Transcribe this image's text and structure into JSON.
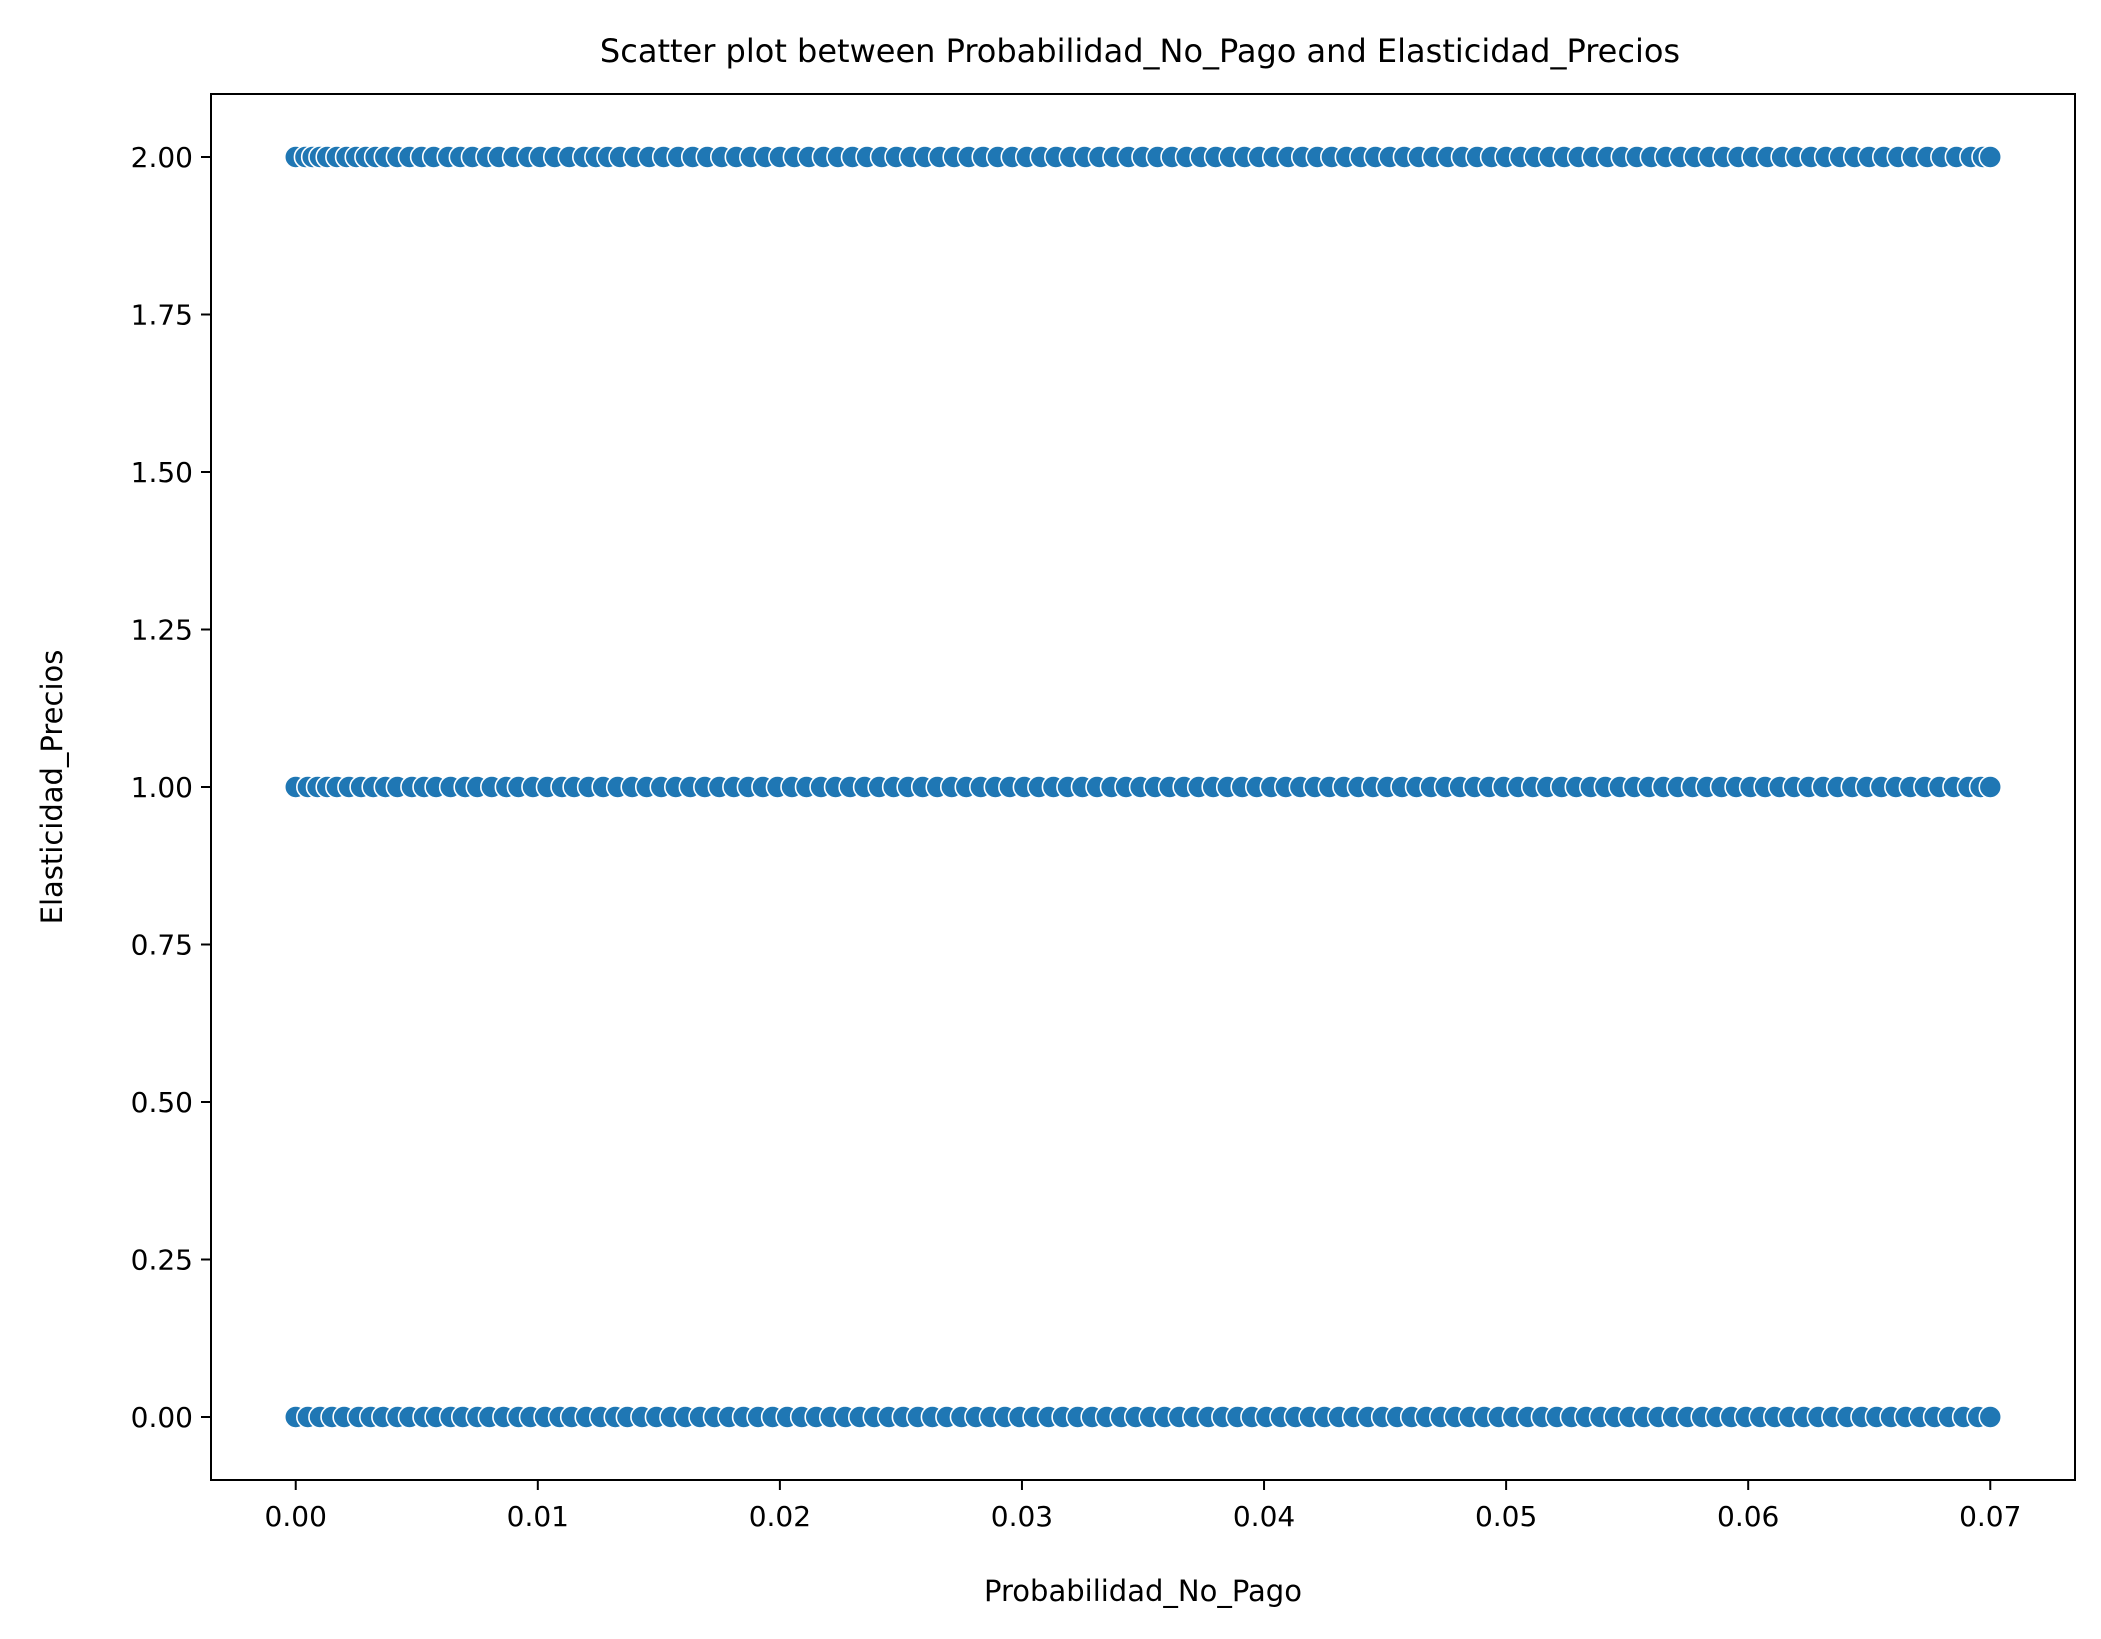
{
  "chart_data": {
    "type": "scatter",
    "title": "Scatter plot between Probabilidad_No_Pago and Elasticidad_Precios",
    "xlabel": "Probabilidad_No_Pago",
    "ylabel": "Elasticidad_Precios",
    "xlim": [
      -0.0035,
      0.0735
    ],
    "ylim": [
      -0.1,
      2.1
    ],
    "xticks": [
      "0.00",
      "0.01",
      "0.02",
      "0.03",
      "0.04",
      "0.05",
      "0.06",
      "0.07"
    ],
    "xtick_values": [
      0,
      0.01,
      0.02,
      0.03,
      0.04,
      0.05,
      0.06,
      0.07
    ],
    "yticks": [
      "0.00",
      "0.25",
      "0.50",
      "0.75",
      "1.00",
      "1.25",
      "1.50",
      "1.75",
      "2.00"
    ],
    "ytick_values": [
      0,
      0.25,
      0.5,
      0.75,
      1,
      1.25,
      1.5,
      1.75,
      2
    ],
    "grid": false,
    "color": "#1f77b4",
    "series": [
      {
        "values_y": 2,
        "x": [
          0.0,
          0.0004,
          0.0007,
          0.001,
          0.0013,
          0.0017,
          0.0021,
          0.0025,
          0.0029,
          0.0033,
          0.0037,
          0.0042,
          0.0047,
          0.0052,
          0.0057,
          0.0063,
          0.0068,
          0.0073,
          0.0079,
          0.0084,
          0.009,
          0.0096,
          0.0101,
          0.0107,
          0.0113,
          0.0119,
          0.0124,
          0.0129,
          0.0134,
          0.014,
          0.0146,
          0.0152,
          0.0158,
          0.0164,
          0.017,
          0.0176,
          0.0182,
          0.0188,
          0.0194,
          0.02,
          0.0206,
          0.0212,
          0.0218,
          0.0224,
          0.023,
          0.0236,
          0.0242,
          0.0248,
          0.0254,
          0.026,
          0.0266,
          0.0272,
          0.0278,
          0.0284,
          0.029,
          0.0296,
          0.0302,
          0.0308,
          0.0314,
          0.032,
          0.0326,
          0.0332,
          0.0338,
          0.0344,
          0.035,
          0.0356,
          0.0362,
          0.0368,
          0.0374,
          0.038,
          0.0386,
          0.0392,
          0.0398,
          0.0404,
          0.041,
          0.0416,
          0.0422,
          0.0428,
          0.0434,
          0.044,
          0.0446,
          0.0452,
          0.0458,
          0.0464,
          0.047,
          0.0476,
          0.0482,
          0.0488,
          0.0494,
          0.05,
          0.0506,
          0.0512,
          0.0518,
          0.0524,
          0.053,
          0.0536,
          0.0542,
          0.0548,
          0.0554,
          0.056,
          0.0566,
          0.0572,
          0.0578,
          0.0584,
          0.059,
          0.0596,
          0.0602,
          0.0608,
          0.0614,
          0.062,
          0.0626,
          0.0632,
          0.0638,
          0.0644,
          0.065,
          0.0656,
          0.0662,
          0.0668,
          0.0674,
          0.068,
          0.0686,
          0.0692,
          0.0697,
          0.07
        ]
      },
      {
        "values_y": 1,
        "x": [
          0.0,
          0.0005,
          0.0009,
          0.0013,
          0.0017,
          0.0022,
          0.0027,
          0.0032,
          0.0037,
          0.0042,
          0.0048,
          0.0053,
          0.0058,
          0.0064,
          0.007,
          0.0075,
          0.0081,
          0.0087,
          0.0092,
          0.0098,
          0.0104,
          0.011,
          0.0115,
          0.0121,
          0.0127,
          0.0133,
          0.0139,
          0.0145,
          0.0151,
          0.0157,
          0.0163,
          0.0169,
          0.0175,
          0.0181,
          0.0187,
          0.0193,
          0.0199,
          0.0205,
          0.0211,
          0.0217,
          0.0223,
          0.0229,
          0.0235,
          0.0241,
          0.0247,
          0.0253,
          0.0259,
          0.0265,
          0.0271,
          0.0277,
          0.0283,
          0.0289,
          0.0295,
          0.0301,
          0.0307,
          0.0313,
          0.0319,
          0.0325,
          0.0331,
          0.0337,
          0.0343,
          0.0349,
          0.0355,
          0.0361,
          0.0367,
          0.0373,
          0.0379,
          0.0385,
          0.0391,
          0.0397,
          0.0403,
          0.0409,
          0.0415,
          0.0421,
          0.0427,
          0.0433,
          0.0439,
          0.0445,
          0.0451,
          0.0457,
          0.0463,
          0.0469,
          0.0475,
          0.0481,
          0.0487,
          0.0493,
          0.0499,
          0.0505,
          0.0511,
          0.0517,
          0.0523,
          0.0529,
          0.0535,
          0.0541,
          0.0547,
          0.0553,
          0.0559,
          0.0565,
          0.0571,
          0.0577,
          0.0583,
          0.0589,
          0.0595,
          0.0601,
          0.0607,
          0.0613,
          0.0619,
          0.0625,
          0.0631,
          0.0637,
          0.0643,
          0.0649,
          0.0655,
          0.0661,
          0.0667,
          0.0673,
          0.0679,
          0.0685,
          0.0691,
          0.0696,
          0.07
        ]
      },
      {
        "values_y": 0,
        "x": [
          0.0,
          0.0005,
          0.001,
          0.0015,
          0.002,
          0.0026,
          0.0031,
          0.0036,
          0.0042,
          0.0047,
          0.0053,
          0.0058,
          0.0064,
          0.0069,
          0.0075,
          0.008,
          0.0086,
          0.0092,
          0.0097,
          0.0103,
          0.0109,
          0.0114,
          0.012,
          0.0126,
          0.0132,
          0.0137,
          0.0143,
          0.0149,
          0.0155,
          0.0161,
          0.0167,
          0.0173,
          0.0179,
          0.0185,
          0.0191,
          0.0197,
          0.0203,
          0.0209,
          0.0215,
          0.0221,
          0.0227,
          0.0233,
          0.0239,
          0.0245,
          0.0251,
          0.0257,
          0.0263,
          0.0269,
          0.0275,
          0.0281,
          0.0287,
          0.0293,
          0.0299,
          0.0305,
          0.0311,
          0.0317,
          0.0323,
          0.0329,
          0.0335,
          0.0341,
          0.0347,
          0.0353,
          0.0359,
          0.0365,
          0.0371,
          0.0377,
          0.0383,
          0.0389,
          0.0395,
          0.0401,
          0.0407,
          0.0413,
          0.0419,
          0.0425,
          0.0431,
          0.0437,
          0.0443,
          0.0449,
          0.0455,
          0.0461,
          0.0467,
          0.0473,
          0.0479,
          0.0485,
          0.0491,
          0.0497,
          0.0503,
          0.0509,
          0.0515,
          0.0521,
          0.0527,
          0.0533,
          0.0539,
          0.0545,
          0.0551,
          0.0557,
          0.0563,
          0.0569,
          0.0575,
          0.0581,
          0.0587,
          0.0593,
          0.0599,
          0.0605,
          0.0611,
          0.0617,
          0.0623,
          0.0629,
          0.0635,
          0.0641,
          0.0647,
          0.0653,
          0.0659,
          0.0665,
          0.0671,
          0.0677,
          0.0683,
          0.0689,
          0.0695,
          0.07
        ]
      }
    ]
  }
}
